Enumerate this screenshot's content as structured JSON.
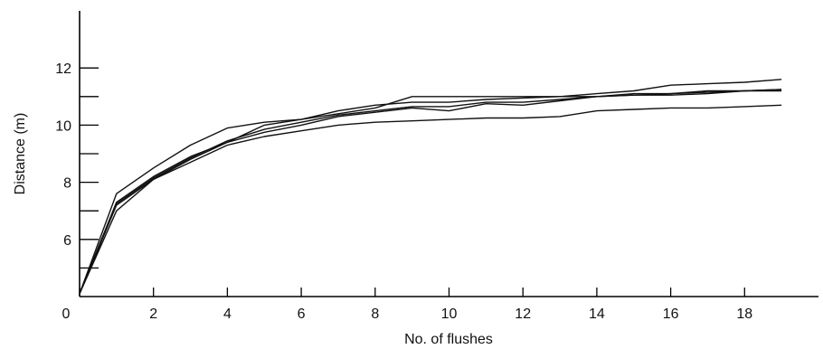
{
  "chart_data": {
    "type": "line",
    "xlabel": "No. of flushes",
    "ylabel": "Distance (m)",
    "xlim": [
      0,
      20
    ],
    "ylim": [
      4,
      14
    ],
    "xticks": [
      0,
      2,
      4,
      6,
      8,
      10,
      12,
      14,
      16,
      18
    ],
    "yticks_labeled": [
      6,
      8,
      10,
      12
    ],
    "yticks_minor": [
      5,
      7,
      9,
      11
    ],
    "grid": false,
    "series": [
      {
        "x": [
          0,
          1,
          2,
          3,
          4,
          5,
          6,
          7,
          8,
          9,
          10,
          11,
          12,
          13,
          14,
          15,
          16,
          17,
          18,
          19
        ],
        "values": [
          4.1,
          7.6,
          8.5,
          9.3,
          9.9,
          10.1,
          10.2,
          10.4,
          10.6,
          11.0,
          11.0,
          11.0,
          11.0,
          11.0,
          11.0,
          11.1,
          11.1,
          11.2,
          11.2,
          11.2
        ]
      },
      {
        "x": [
          0,
          1,
          2,
          3,
          4,
          5,
          6,
          7,
          8,
          9,
          10,
          11,
          12,
          13,
          14,
          15,
          16,
          17,
          18,
          19
        ],
        "values": [
          4.1,
          7.0,
          8.1,
          8.7,
          9.3,
          9.6,
          9.8,
          10.0,
          10.1,
          10.15,
          10.2,
          10.25,
          10.25,
          10.3,
          10.5,
          10.55,
          10.6,
          10.6,
          10.65,
          10.7
        ]
      },
      {
        "x": [
          0,
          1,
          2,
          3,
          4,
          5,
          6,
          7,
          8,
          9,
          10,
          11,
          12,
          13,
          14,
          15,
          16,
          17,
          18,
          19
        ],
        "values": [
          4.1,
          7.3,
          8.2,
          8.9,
          9.4,
          10.0,
          10.2,
          10.5,
          10.7,
          10.8,
          10.8,
          10.9,
          10.95,
          11.0,
          11.1,
          11.2,
          11.4,
          11.45,
          11.5,
          11.6
        ]
      },
      {
        "x": [
          0,
          1,
          2,
          3,
          4,
          5,
          6,
          7,
          8,
          9,
          10,
          11,
          12,
          13,
          14,
          15,
          16,
          17,
          18,
          19
        ],
        "values": [
          4.1,
          7.2,
          8.1,
          8.8,
          9.4,
          9.75,
          10.0,
          10.3,
          10.45,
          10.6,
          10.5,
          10.75,
          10.7,
          10.85,
          11.0,
          11.05,
          11.05,
          11.1,
          11.2,
          11.25
        ]
      },
      {
        "x": [
          0,
          1,
          2,
          3,
          4,
          5,
          6,
          7,
          8,
          9,
          10,
          11,
          12,
          13,
          14,
          15,
          16,
          17,
          18,
          19
        ],
        "values": [
          4.1,
          7.25,
          8.15,
          8.85,
          9.45,
          9.85,
          10.1,
          10.35,
          10.5,
          10.65,
          10.65,
          10.8,
          10.8,
          10.9,
          11.0,
          11.05,
          11.1,
          11.15,
          11.2,
          11.25
        ]
      }
    ]
  }
}
